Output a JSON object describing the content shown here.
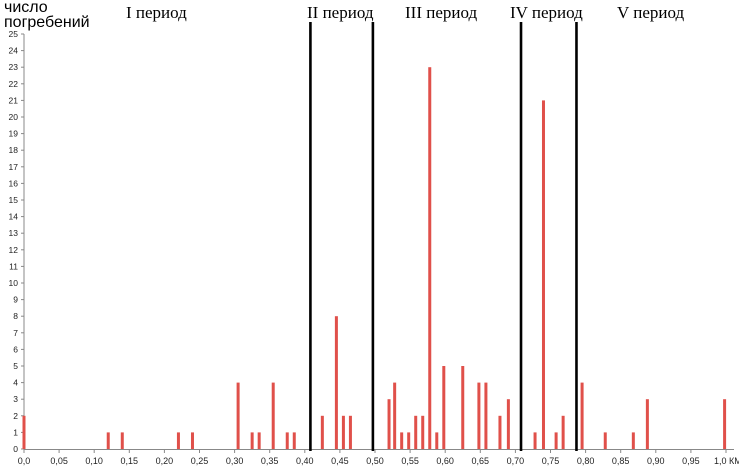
{
  "chart_data": {
    "type": "bar",
    "ylabel_line1": "число",
    "ylabel_line2": "погребений",
    "ylim": [
      0,
      25
    ],
    "yticks": [
      "0",
      "1",
      "2",
      "3",
      "4",
      "5",
      "6",
      "7",
      "8",
      "9",
      "10",
      "11",
      "12",
      "13",
      "14",
      "15",
      "16",
      "17",
      "18",
      "19",
      "20",
      "21",
      "22",
      "23",
      "24",
      "25"
    ],
    "xlim": [
      0.0,
      1.0
    ],
    "xticks": [
      {
        "v": 0.0,
        "label": "0,0"
      },
      {
        "v": 0.05,
        "label": "0,05"
      },
      {
        "v": 0.1,
        "label": "0,10"
      },
      {
        "v": 0.15,
        "label": "0,15"
      },
      {
        "v": 0.2,
        "label": "0,20"
      },
      {
        "v": 0.25,
        "label": "0,25"
      },
      {
        "v": 0.3,
        "label": "0,30"
      },
      {
        "v": 0.35,
        "label": "0,35"
      },
      {
        "v": 0.4,
        "label": "0,40"
      },
      {
        "v": 0.45,
        "label": "0,45"
      },
      {
        "v": 0.5,
        "label": "0,50"
      },
      {
        "v": 0.55,
        "label": "0,55"
      },
      {
        "v": 0.6,
        "label": "0,60"
      },
      {
        "v": 0.65,
        "label": "0,65"
      },
      {
        "v": 0.7,
        "label": "0,70"
      },
      {
        "v": 0.75,
        "label": "0,75"
      },
      {
        "v": 0.8,
        "label": "0,80"
      },
      {
        "v": 0.85,
        "label": "0,85"
      },
      {
        "v": 0.9,
        "label": "0,90"
      },
      {
        "v": 0.95,
        "label": "0,95"
      },
      {
        "v": 1.0,
        "label": "1,0 КМ"
      }
    ],
    "bars": [
      {
        "x": 0.0,
        "y": 2
      },
      {
        "x": 0.12,
        "y": 1
      },
      {
        "x": 0.14,
        "y": 1
      },
      {
        "x": 0.22,
        "y": 1
      },
      {
        "x": 0.24,
        "y": 1
      },
      {
        "x": 0.305,
        "y": 4
      },
      {
        "x": 0.325,
        "y": 1
      },
      {
        "x": 0.335,
        "y": 1
      },
      {
        "x": 0.355,
        "y": 4
      },
      {
        "x": 0.375,
        "y": 1
      },
      {
        "x": 0.385,
        "y": 1
      },
      {
        "x": 0.425,
        "y": 2
      },
      {
        "x": 0.445,
        "y": 8
      },
      {
        "x": 0.455,
        "y": 2
      },
      {
        "x": 0.465,
        "y": 2
      },
      {
        "x": 0.52,
        "y": 3
      },
      {
        "x": 0.528,
        "y": 4
      },
      {
        "x": 0.538,
        "y": 1
      },
      {
        "x": 0.548,
        "y": 1
      },
      {
        "x": 0.558,
        "y": 2
      },
      {
        "x": 0.568,
        "y": 2
      },
      {
        "x": 0.578,
        "y": 23
      },
      {
        "x": 0.588,
        "y": 1
      },
      {
        "x": 0.598,
        "y": 5
      },
      {
        "x": 0.625,
        "y": 5
      },
      {
        "x": 0.648,
        "y": 4
      },
      {
        "x": 0.658,
        "y": 4
      },
      {
        "x": 0.678,
        "y": 2
      },
      {
        "x": 0.69,
        "y": 3
      },
      {
        "x": 0.728,
        "y": 1
      },
      {
        "x": 0.74,
        "y": 21
      },
      {
        "x": 0.758,
        "y": 1
      },
      {
        "x": 0.768,
        "y": 2
      },
      {
        "x": 0.795,
        "y": 4
      },
      {
        "x": 0.828,
        "y": 1
      },
      {
        "x": 0.868,
        "y": 1
      },
      {
        "x": 0.888,
        "y": 3
      },
      {
        "x": 0.998,
        "y": 3
      }
    ],
    "dividers": [
      0.408,
      0.497,
      0.708,
      0.787
    ],
    "periods": [
      {
        "label": "I период"
      },
      {
        "label": "II период"
      },
      {
        "label": "III период"
      },
      {
        "label": "IV период"
      },
      {
        "label": "V период"
      }
    ],
    "bar_color": "#e0504a",
    "divider_color": "#000000",
    "grid": false
  }
}
